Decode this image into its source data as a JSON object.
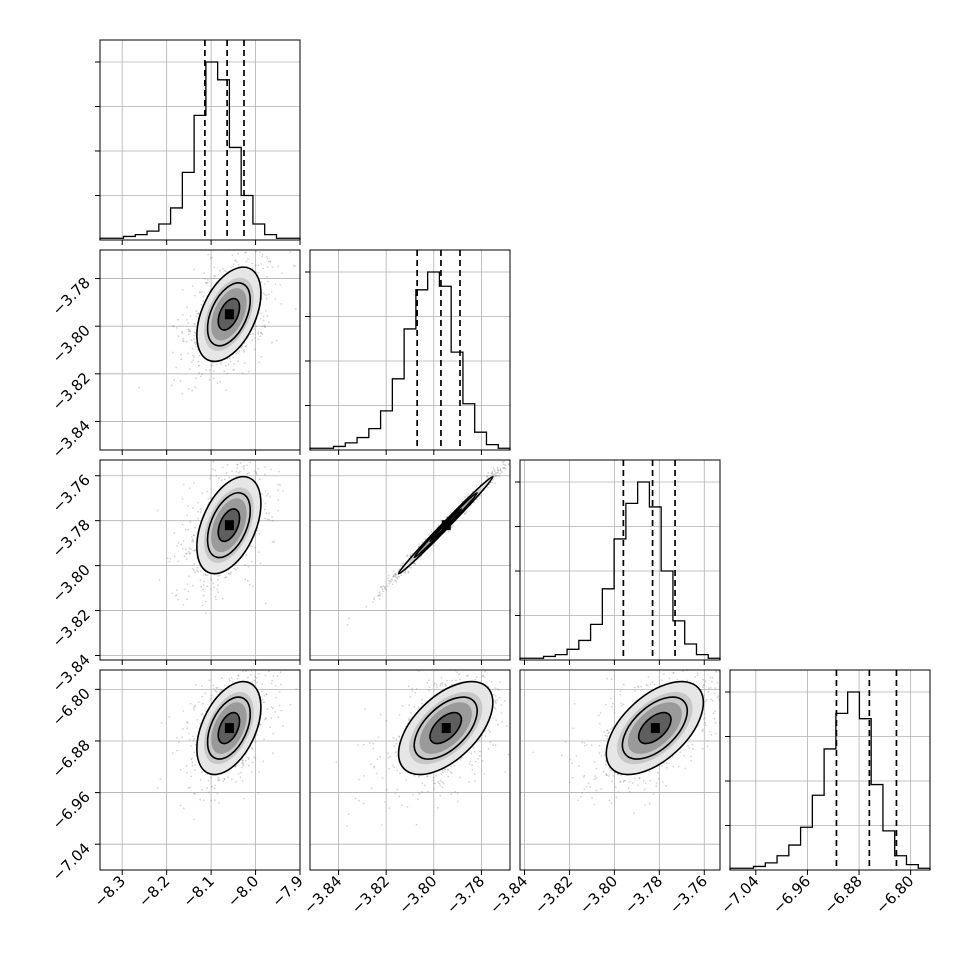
{
  "chart_data": {
    "type": "corner",
    "params": [
      {
        "id": "p0",
        "range": [
          -8.35,
          -7.9
        ],
        "ticks": [
          -8.3,
          -8.2,
          -8.1,
          -8.0,
          -7.9
        ],
        "tick_labels": [
          "−8.3",
          "−8.2",
          "−8.1",
          "−8.0",
          "−7.9"
        ],
        "mean": -8.06,
        "sd": 0.04,
        "quantiles": [
          -8.114,
          -8.064,
          -8.026
        ]
      },
      {
        "id": "p1",
        "range": [
          -3.852,
          -3.768
        ],
        "ticks": [
          -3.84,
          -3.82,
          -3.8,
          -3.78
        ],
        "tick_labels": [
          "−3.84",
          "−3.82",
          "−3.80",
          "−3.78"
        ],
        "mean": -3.795,
        "sd": 0.011,
        "quantiles": [
          -3.807,
          -3.797,
          -3.789
        ]
      },
      {
        "id": "p2",
        "range": [
          -3.842,
          -3.753
        ],
        "ticks": [
          -3.84,
          -3.82,
          -3.8,
          -3.78,
          -3.76
        ],
        "tick_labels": [
          "−3.84",
          "−3.82",
          "−3.80",
          "−3.78",
          "−3.76"
        ],
        "mean": -3.782,
        "sd": 0.012,
        "quantiles": [
          -3.796,
          -3.783,
          -3.773
        ]
      },
      {
        "id": "p3",
        "range": [
          -7.08,
          -6.77
        ],
        "ticks": [
          -7.04,
          -6.96,
          -6.88,
          -6.8
        ],
        "tick_labels": [
          "−7.04",
          "−6.96",
          "−6.88",
          "−6.80"
        ],
        "mean": -6.86,
        "sd": 0.04,
        "quantiles": [
          -6.915,
          -6.864,
          -6.822
        ]
      }
    ],
    "hist_counts": [
      [
        1,
        1,
        2,
        3,
        5,
        9,
        18,
        38,
        70,
        100,
        90,
        52,
        25,
        9,
        3,
        1,
        1
      ],
      [
        1,
        1,
        2,
        4,
        7,
        12,
        22,
        40,
        68,
        90,
        100,
        92,
        55,
        26,
        10,
        3,
        1
      ],
      [
        1,
        1,
        2,
        3,
        6,
        11,
        20,
        40,
        68,
        88,
        100,
        86,
        50,
        22,
        9,
        3,
        1
      ],
      [
        1,
        1,
        2,
        4,
        8,
        14,
        24,
        42,
        68,
        88,
        100,
        85,
        48,
        22,
        8,
        3,
        1
      ]
    ],
    "correlations": {
      "1-0": 0.45,
      "2-0": 0.45,
      "2-1": 0.995,
      "3-0": 0.45,
      "3-1": 0.55,
      "3-2": 0.55
    },
    "quantile_levels": [
      0.16,
      0.5,
      0.84
    ],
    "grid": true
  }
}
